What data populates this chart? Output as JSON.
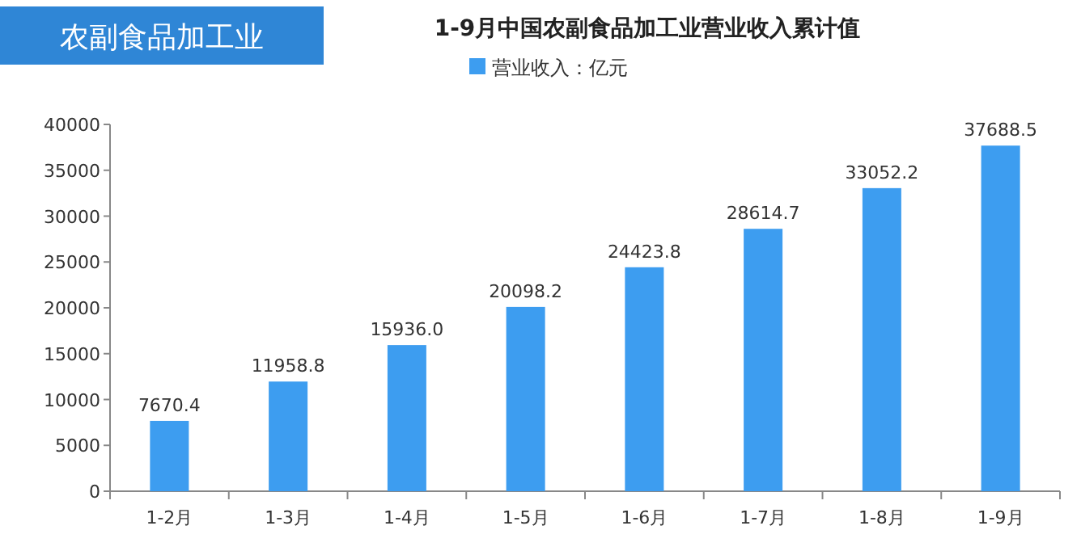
{
  "chart_data": {
    "type": "bar",
    "title": "1-9月中国农副食品加工业营业收入累计值",
    "annotations": [
      "农副食品加工业"
    ],
    "categories": [
      "1-2月",
      "1-3月",
      "1-4月",
      "1-5月",
      "1-6月",
      "1-7月",
      "1-8月",
      "1-9月"
    ],
    "series": [
      {
        "name": "营业收入：亿元",
        "color": "#3d9df0",
        "values": [
          7670.4,
          11958.8,
          15936.0,
          20098.2,
          24423.8,
          28614.7,
          33052.2,
          37688.5
        ]
      }
    ],
    "value_labels": [
      "7670.4",
      "11958.8",
      "15936.0",
      "20098.2",
      "24423.8",
      "28614.7",
      "33052.2",
      "37688.5"
    ],
    "ylim": [
      0,
      40000
    ],
    "yticks": [
      0,
      5000,
      10000,
      15000,
      20000,
      25000,
      30000,
      35000,
      40000
    ],
    "legend": "top",
    "grid": false
  }
}
